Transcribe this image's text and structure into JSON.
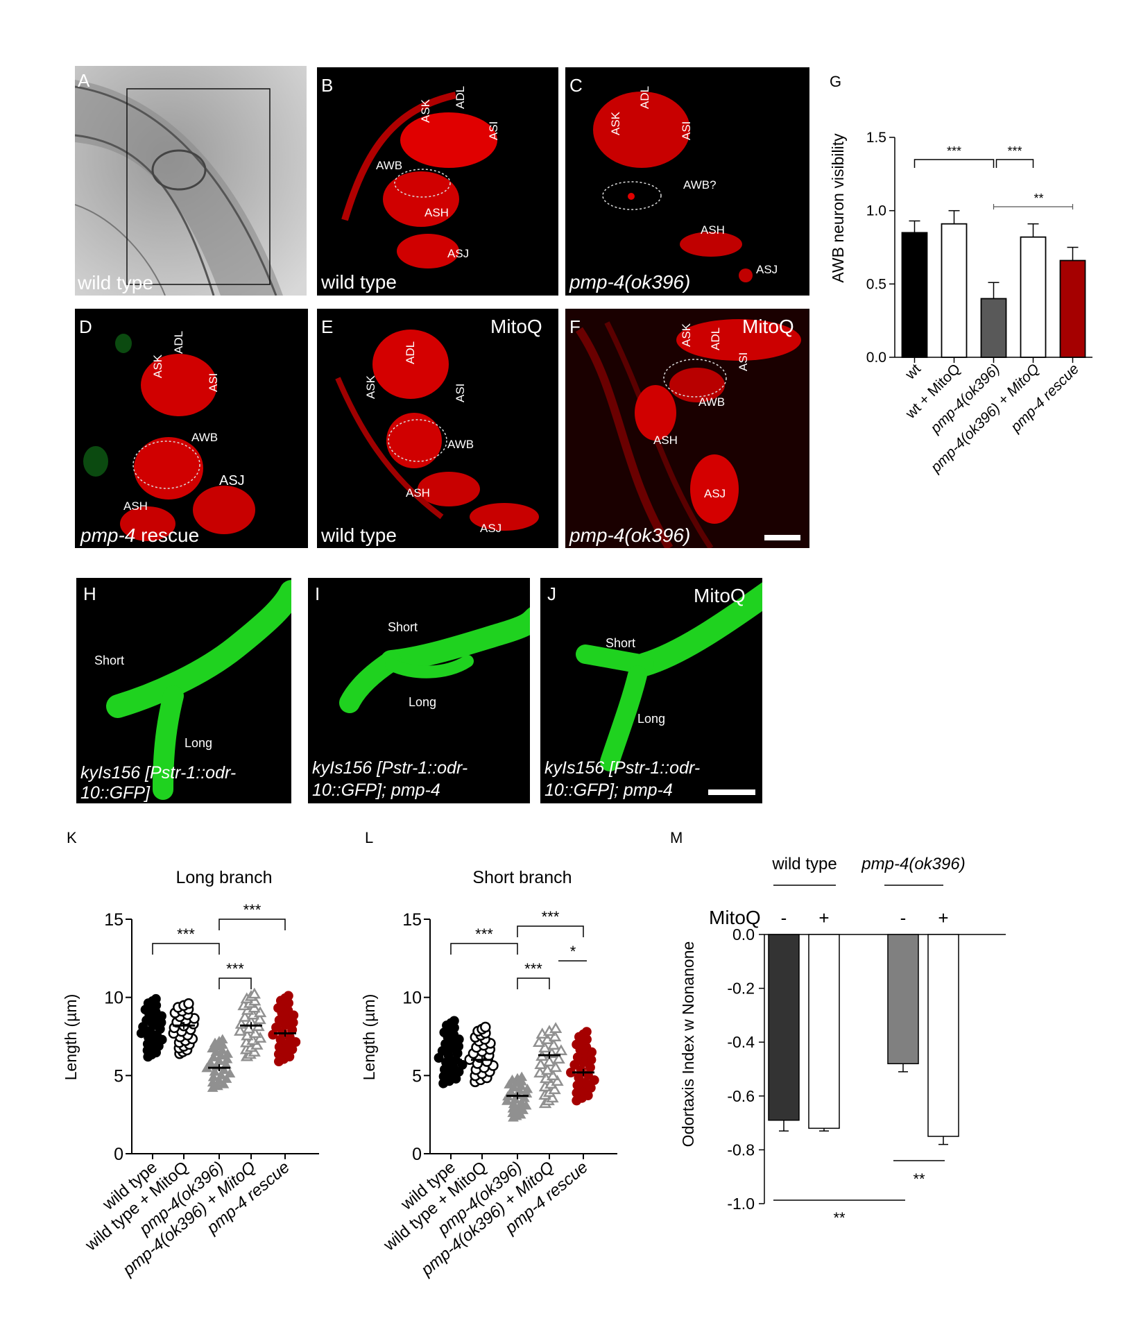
{
  "panel_letters": {
    "A": "A",
    "B": "B",
    "C": "C",
    "D": "D",
    "E": "E",
    "F": "F",
    "G": "G",
    "H": "H",
    "I": "I",
    "J": "J",
    "K": "K",
    "L": "L",
    "M": "M"
  },
  "micrographs": {
    "A": {
      "caption": "wild type"
    },
    "B": {
      "caption": "wild type",
      "cells": [
        "ASK",
        "ADL",
        "ASI",
        "AWB",
        "ASH",
        "ASJ"
      ]
    },
    "C": {
      "caption": "pmp-4(ok396)",
      "cells": [
        "ASK",
        "ADL",
        "ASI",
        "AWB?",
        "ASH",
        "ASJ"
      ]
    },
    "D": {
      "caption_italic": "pmp-4",
      "caption_plain": " rescue",
      "cells": [
        "ASK",
        "ADL",
        "ASI",
        "AWB",
        "ASJ",
        "ASH"
      ]
    },
    "E": {
      "caption": "wild type",
      "treatment": "MitoQ",
      "cells": [
        "ASK",
        "ADL",
        "ASI",
        "AWB",
        "ASH",
        "ASJ"
      ]
    },
    "F": {
      "caption": "pmp-4(ok396)",
      "treatment": "MitoQ",
      "cells": [
        "ASK",
        "ADL",
        "ASI",
        "AWB",
        "ASH",
        "ASJ"
      ]
    },
    "H": {
      "caption_line1": "kyIs156 [Pstr-1::odr-",
      "caption_line2": "10::GFP]",
      "branch_short": "Short",
      "branch_long": "Long"
    },
    "I": {
      "caption_line1": "kyIs156 [Pstr-1::odr-",
      "caption_line2": "10::GFP]; pmp-4",
      "branch_short": "Short",
      "branch_long": "Long"
    },
    "J": {
      "caption_line1": "kyIs156 [Pstr-1::odr-",
      "caption_line2": "10::GFP]; pmp-4",
      "treatment": "MitoQ",
      "branch_short": "Short",
      "branch_long": "Long"
    }
  },
  "chart_data": [
    {
      "panel": "G",
      "type": "bar",
      "ylabel": "AWB neuron visibility",
      "ylim": [
        0,
        1.5
      ],
      "yticks": [
        "0.0",
        "0.5",
        "1.0",
        "1.5"
      ],
      "categories": [
        "wt",
        "wt + MitoQ",
        "pmp-4(ok396)",
        "pmp-4(ok396) + MitoQ",
        "pmp-4 rescue"
      ],
      "values": [
        0.85,
        0.91,
        0.4,
        0.82,
        0.66
      ],
      "errors": [
        0.08,
        0.09,
        0.11,
        0.09,
        0.09
      ],
      "bar_colors": [
        "#000000",
        "#ffffff",
        "#595959",
        "#ffffff",
        "#a50000"
      ],
      "significance": [
        {
          "label": "***",
          "between": [
            "wt",
            "pmp-4(ok396)"
          ]
        },
        {
          "label": "***",
          "between": [
            "pmp-4(ok396)",
            "pmp-4(ok396) + MitoQ"
          ]
        },
        {
          "label": "**",
          "between": [
            "pmp-4(ok396)",
            "pmp-4 rescue"
          ]
        }
      ]
    },
    {
      "panel": "K",
      "type": "scatter",
      "title": "Long branch",
      "ylabel": "Length (µm)",
      "ylim": [
        0,
        15
      ],
      "yticks": [
        "0",
        "5",
        "10",
        "15"
      ],
      "categories": [
        "wild type",
        "wild type + MitoQ",
        "pmp-4(ok396)",
        "pmp-4(ok396) + MitoQ",
        "pmp-4 rescue"
      ],
      "means": [
        8.0,
        8.2,
        5.5,
        8.2,
        7.7
      ],
      "ranges": [
        [
          6.2,
          9.9
        ],
        [
          6.4,
          9.6
        ],
        [
          4.2,
          7.3
        ],
        [
          6.2,
          10.2
        ],
        [
          5.9,
          10.1
        ]
      ],
      "markers": [
        "filled-circle",
        "open-circle",
        "filled-triangle",
        "open-triangle",
        "filled-circle"
      ],
      "colors": [
        "#000000",
        "#000000",
        "#909090",
        "#909090",
        "#a50000"
      ],
      "significance": [
        {
          "label": "***",
          "between": [
            "wild type",
            "pmp-4(ok396)"
          ]
        },
        {
          "label": "***",
          "between": [
            "pmp-4(ok396)",
            "pmp-4 rescue"
          ]
        },
        {
          "label": "***",
          "between": [
            "pmp-4(ok396)",
            "pmp-4(ok396) + MitoQ"
          ]
        }
      ]
    },
    {
      "panel": "L",
      "type": "scatter",
      "title": "Short branch",
      "ylabel": "Length (µm)",
      "ylim": [
        0,
        15
      ],
      "yticks": [
        "0",
        "5",
        "10",
        "15"
      ],
      "categories": [
        "wild type",
        "wild type + MitoQ",
        "pmp-4(ok396)",
        "pmp-4(ok396) + MitoQ",
        "pmp-4 rescue"
      ],
      "means": [
        6.0,
        6.0,
        3.7,
        6.3,
        5.2
      ],
      "ranges": [
        [
          4.5,
          8.5
        ],
        [
          4.6,
          8.1
        ],
        [
          2.3,
          4.9
        ],
        [
          3.2,
          8.0
        ],
        [
          3.4,
          7.8
        ]
      ],
      "markers": [
        "filled-circle",
        "open-circle",
        "filled-triangle",
        "open-triangle",
        "filled-circle"
      ],
      "colors": [
        "#000000",
        "#000000",
        "#909090",
        "#909090",
        "#a50000"
      ],
      "significance": [
        {
          "label": "***",
          "between": [
            "wild type",
            "pmp-4(ok396)"
          ]
        },
        {
          "label": "***",
          "between": [
            "pmp-4(ok396)",
            "pmp-4 rescue"
          ]
        },
        {
          "label": "***",
          "between": [
            "pmp-4(ok396)",
            "pmp-4(ok396) + MitoQ"
          ]
        },
        {
          "label": "*",
          "between": [
            "pmp-4(ok396) + MitoQ",
            "pmp-4 rescue"
          ]
        }
      ]
    },
    {
      "panel": "M",
      "type": "bar",
      "ylabel": "Odortaxis Index w Nonanone",
      "ylim": [
        -1.0,
        0.0
      ],
      "yticks": [
        "0.0",
        "-0.2",
        "-0.4",
        "-0.6",
        "-0.8",
        "-1.0"
      ],
      "group_labels": [
        "wild type",
        "pmp-4(ok396)"
      ],
      "treatment_label": "MitoQ",
      "treatment_signs": [
        "-",
        "+",
        "-",
        "+"
      ],
      "values": [
        -0.69,
        -0.72,
        -0.48,
        -0.75
      ],
      "errors": [
        0.04,
        0.01,
        0.03,
        0.03
      ],
      "bar_colors": [
        "#333333",
        "#ffffff",
        "#808080",
        "#ffffff"
      ],
      "significance": [
        {
          "label": "**",
          "between": [
            "pmp-4(ok396) -",
            "pmp-4(ok396) +"
          ]
        },
        {
          "label": "**",
          "between": [
            "wild type -",
            "pmp-4(ok396) -"
          ]
        }
      ]
    }
  ]
}
